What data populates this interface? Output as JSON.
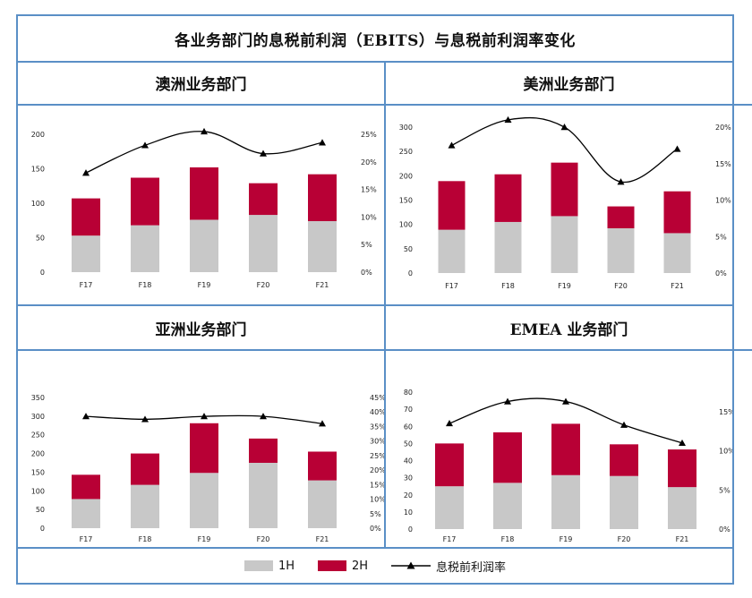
{
  "main_title": "各业务部门的息税前利润（EBITS）与息税前利润率变化",
  "legend": {
    "h1": "1H",
    "h2": "2H",
    "margin": "息税前利润率"
  },
  "colors": {
    "h1": "#c8c8c8",
    "h2": "#b80035",
    "line": "#000000",
    "border": "#5a8fc6"
  },
  "chart_data": [
    {
      "title": "澳洲业务部门",
      "type": "bar",
      "categories": [
        "F17",
        "F18",
        "F19",
        "F20",
        "F21"
      ],
      "series": [
        {
          "name": "1H",
          "values": [
            53,
            68,
            76,
            83,
            74
          ]
        },
        {
          "name": "2H",
          "values": [
            54,
            69,
            76,
            46,
            68
          ]
        }
      ],
      "line": {
        "name": "息税前利润率",
        "values": [
          18,
          23,
          25.5,
          21.5,
          23.5
        ]
      },
      "ylim": [
        0,
        200
      ],
      "yticks": [
        0,
        50,
        100,
        150,
        200
      ],
      "y2lim": [
        0,
        25
      ],
      "y2ticks": [
        "0%",
        "5%",
        "10%",
        "15%",
        "20%",
        "25%"
      ]
    },
    {
      "title": "美洲业务部门",
      "type": "bar",
      "categories": [
        "F17",
        "F18",
        "F19",
        "F20",
        "F21"
      ],
      "series": [
        {
          "name": "1H",
          "values": [
            89,
            105,
            117,
            92,
            82
          ]
        },
        {
          "name": "2H",
          "values": [
            100,
            98,
            110,
            45,
            86
          ]
        }
      ],
      "line": {
        "name": "息税前利润率",
        "values": [
          17.5,
          21,
          20,
          12.5,
          17
        ]
      },
      "ylim": [
        0,
        300
      ],
      "yticks": [
        0,
        50,
        100,
        150,
        200,
        250,
        300
      ],
      "y2lim": [
        0,
        20
      ],
      "y2ticks": [
        "0%",
        "5%",
        "10%",
        "15%",
        "20%"
      ]
    },
    {
      "title": "亚洲业务部门",
      "type": "bar",
      "categories": [
        "F17",
        "F18",
        "F19",
        "F20",
        "F21"
      ],
      "series": [
        {
          "name": "1H",
          "values": [
            78,
            116,
            148,
            175,
            128
          ]
        },
        {
          "name": "2H",
          "values": [
            65,
            84,
            133,
            65,
            77
          ]
        }
      ],
      "line": {
        "name": "息税前利润率",
        "values": [
          38.5,
          37.5,
          38.5,
          38.5,
          36
        ]
      },
      "ylim": [
        0,
        350
      ],
      "yticks": [
        0,
        50,
        100,
        150,
        200,
        250,
        300,
        350
      ],
      "y2lim": [
        0,
        45
      ],
      "y2ticks": [
        "0%",
        "5%",
        "10%",
        "15%",
        "20%",
        "25%",
        "30%",
        "35%",
        "40%",
        "45%"
      ]
    },
    {
      "title": "EMEA 业务部门",
      "type": "bar",
      "categories": [
        "F17",
        "F18",
        "F19",
        "F20",
        "F21"
      ],
      "series": [
        {
          "name": "1H",
          "values": [
            25,
            27,
            31.5,
            31,
            24.5
          ]
        },
        {
          "name": "2H",
          "values": [
            25,
            29.5,
            30,
            18.5,
            22
          ]
        }
      ],
      "line": {
        "name": "息税前利润率",
        "values": [
          13.5,
          16.3,
          16.3,
          13.3,
          11
        ]
      },
      "ylim": [
        0,
        80
      ],
      "yticks": [
        0,
        10,
        20,
        30,
        40,
        50,
        60,
        70,
        80
      ],
      "y2lim": [
        0,
        17.5
      ],
      "y2ticks": [
        "0%",
        "5%",
        "10%",
        "15%"
      ]
    }
  ]
}
